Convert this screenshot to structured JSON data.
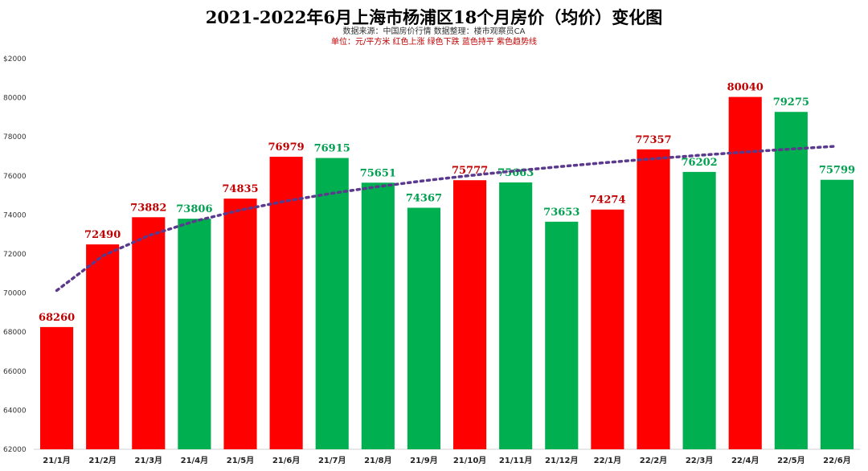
{
  "chart_data": {
    "type": "bar",
    "title": "2021-2022年6月上海市杨浦区18个月房价（均价）变化图",
    "source_line": "数据来源：中国房价行情     数据整理：楼市观察员CA",
    "legend_line": "单位：元/平方米     红色上涨     绿色下跌     蓝色持平     紫色趋势线",
    "categories": [
      "21/1月",
      "21/2月",
      "21/3月",
      "21/4月",
      "21/5月",
      "21/6月",
      "21/7月",
      "21/8月",
      "21/9月",
      "21/10月",
      "21/11月",
      "21/12月",
      "22/1月",
      "22/2月",
      "22/3月",
      "22/4月",
      "22/5月",
      "22/6月"
    ],
    "values": [
      68260,
      72490,
      73882,
      73806,
      74835,
      76979,
      76915,
      75651,
      74367,
      75777,
      75663,
      73653,
      74274,
      77357,
      76202,
      80040,
      79275,
      75799
    ],
    "value_labels": [
      "68260",
      "72490",
      "73882",
      "73806",
      "74835",
      "76979",
      "76915",
      "75651",
      "74367",
      "75777",
      "75663",
      "73653",
      "74274",
      "77357",
      "76202",
      "80040",
      "79275",
      "75799"
    ],
    "bar_colors": [
      "#ff0000",
      "#ff0000",
      "#ff0000",
      "#00b050",
      "#ff0000",
      "#ff0000",
      "#00b050",
      "#00b050",
      "#00b050",
      "#ff0000",
      "#00b050",
      "#00b050",
      "#ff0000",
      "#ff0000",
      "#00b050",
      "#ff0000",
      "#00b050",
      "#00b050"
    ],
    "label_colors": [
      "#c00000",
      "#c00000",
      "#c00000",
      "#00a050",
      "#c00000",
      "#c00000",
      "#00a050",
      "#00a050",
      "#00a050",
      "#c00000",
      "#00a050",
      "#00a050",
      "#c00000",
      "#c00000",
      "#00a050",
      "#c00000",
      "#00a050",
      "#00a050"
    ],
    "yticks": [
      "62000",
      "64000",
      "66000",
      "68000",
      "70000",
      "72000",
      "74000",
      "76000",
      "78000",
      "80000",
      "$2000"
    ],
    "ylim": [
      62000,
      82000
    ],
    "trendline": {
      "type": "logarithmic",
      "color": "#5b3a8e",
      "start": 70130,
      "end": 77520
    },
    "grid": false,
    "legend": "none"
  }
}
